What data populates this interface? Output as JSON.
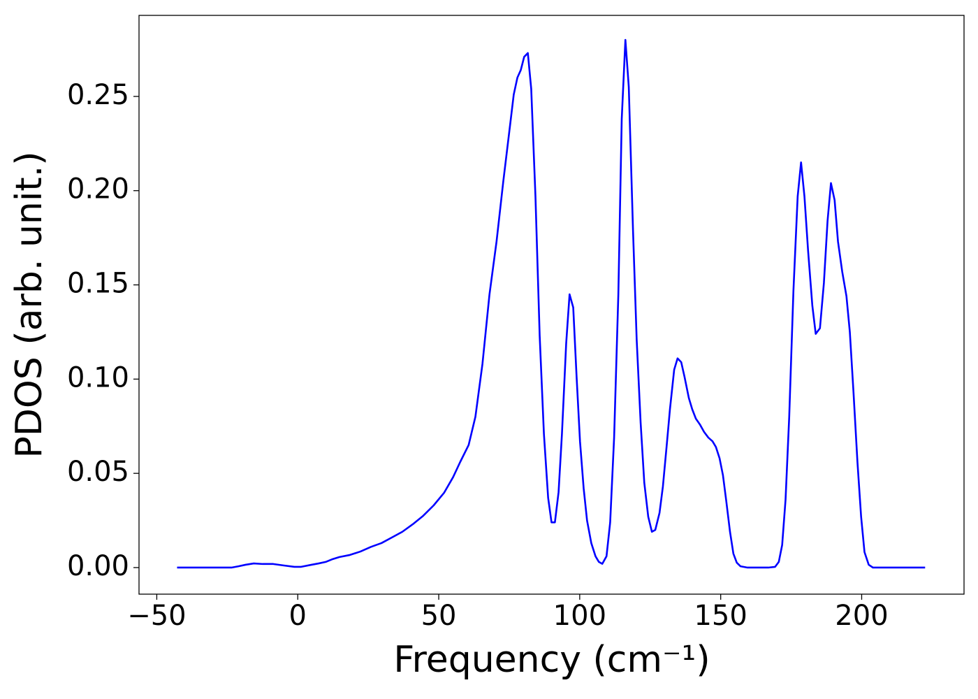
{
  "chart_data": {
    "type": "line",
    "xlabel": "Frequency (cm⁻¹)",
    "ylabel": "PDOS (arb. unit.)",
    "xlim": [
      -56.3,
      236.3
    ],
    "ylim": [
      -0.0141,
      0.293
    ],
    "xticks": [
      {
        "value": -50,
        "label": "−50"
      },
      0,
      50,
      100,
      150,
      200
    ],
    "yticks": [
      {
        "value": 0,
        "label": "0.00"
      },
      {
        "value": 0.05,
        "label": "0.05"
      },
      {
        "value": 0.1,
        "label": "0.10"
      },
      {
        "value": 0.15,
        "label": "0.15"
      },
      {
        "value": 0.2,
        "label": "0.20"
      },
      {
        "value": 0.25,
        "label": "0.25"
      }
    ],
    "grid": false,
    "series": [
      {
        "color": "#0000ff",
        "x": [
          -42.8,
          -23.5,
          -21,
          -18.5,
          -15.6,
          -12.4,
          -8.7,
          -4.9,
          -1.2,
          1.2,
          4.9,
          7.4,
          9.9,
          12.4,
          14.8,
          18.5,
          22.2,
          26,
          29.7,
          33.4,
          37.1,
          40.8,
          44.5,
          48.2,
          51.9,
          55.1,
          57.6,
          60.6,
          63,
          65.5,
          68,
          70.5,
          72.9,
          75.4,
          76.6,
          77.9,
          79.1,
          80.3,
          81.6,
          82.8,
          84.3,
          85.8,
          87.3,
          88.8,
          90,
          91.2,
          92.5,
          93.7,
          95.2,
          96.4,
          97.7,
          98.9,
          100.1,
          101.4,
          102.6,
          104.1,
          105.6,
          106.8,
          108,
          109.5,
          110.8,
          112.2,
          113.7,
          114.9,
          116.2,
          117.4,
          118.9,
          120.2,
          121.6,
          122.9,
          124.3,
          125.6,
          126.8,
          128.3,
          129.5,
          130.8,
          132,
          133.5,
          134.7,
          136,
          137.2,
          138.7,
          139.9,
          141.2,
          142.6,
          144.1,
          145.6,
          147.1,
          148.3,
          149.6,
          150.8,
          152,
          153.3,
          154.5,
          155.7,
          157,
          159.5,
          166.9,
          169.3,
          170.6,
          171.8,
          173,
          174.3,
          175.8,
          177.3,
          178.5,
          179.7,
          181,
          182.5,
          183.7,
          185.2,
          186.6,
          187.9,
          189.1,
          190.4,
          191.6,
          193.1,
          194.6,
          195.8,
          197.1,
          198.5,
          199.8,
          201,
          202.5,
          204,
          222.5
        ],
        "values": [
          0,
          0,
          0.0007,
          0.0015,
          0.0022,
          0.0019,
          0.0019,
          0.0011,
          0.0004,
          0.0004,
          0.0015,
          0.0022,
          0.003,
          0.0045,
          0.0056,
          0.0067,
          0.0085,
          0.011,
          0.013,
          0.016,
          0.019,
          0.023,
          0.0275,
          0.033,
          0.0397,
          0.048,
          0.056,
          0.065,
          0.08,
          0.108,
          0.145,
          0.173,
          0.205,
          0.236,
          0.251,
          0.26,
          0.264,
          0.271,
          0.273,
          0.254,
          0.197,
          0.123,
          0.071,
          0.037,
          0.024,
          0.024,
          0.04,
          0.071,
          0.119,
          0.145,
          0.138,
          0.101,
          0.067,
          0.042,
          0.025,
          0.013,
          0.006,
          0.003,
          0.002,
          0.006,
          0.024,
          0.069,
          0.145,
          0.238,
          0.28,
          0.255,
          0.179,
          0.121,
          0.077,
          0.045,
          0.027,
          0.019,
          0.02,
          0.029,
          0.043,
          0.064,
          0.084,
          0.105,
          0.111,
          0.109,
          0.101,
          0.09,
          0.084,
          0.079,
          0.076,
          0.072,
          0.069,
          0.067,
          0.064,
          0.058,
          0.049,
          0.035,
          0.019,
          0.0074,
          0.0026,
          0.0007,
          0,
          0,
          0.0004,
          0.003,
          0.012,
          0.036,
          0.08,
          0.147,
          0.197,
          0.215,
          0.197,
          0.168,
          0.139,
          0.124,
          0.127,
          0.151,
          0.184,
          0.204,
          0.195,
          0.173,
          0.157,
          0.144,
          0.125,
          0.093,
          0.056,
          0.027,
          0.0082,
          0.0015,
          0,
          0
        ]
      }
    ]
  }
}
